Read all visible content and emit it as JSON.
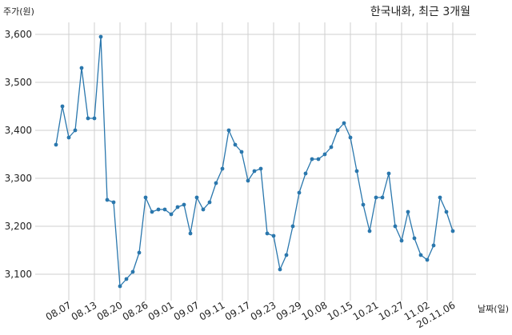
{
  "chart_data": {
    "type": "line",
    "title": "한국내화, 최근 3개월",
    "ylabel": "주가(원)",
    "xlabel": "날짜(일)",
    "ylim": [
      3045,
      3625
    ],
    "yticks": [
      3100,
      3200,
      3300,
      3400,
      3500,
      3600
    ],
    "ytick_labels": [
      "3,100",
      "3,200",
      "3,300",
      "3,400",
      "3,500",
      "3,600"
    ],
    "xtick_labels": [
      "08.07",
      "08.13",
      "08.20",
      "08.26",
      "09.01",
      "09.07",
      "09.11",
      "09.17",
      "09.23",
      "09.29",
      "10.08",
      "10.15",
      "10.21",
      "10.27",
      "11.02",
      "20.11.06"
    ],
    "xtick_index": [
      2,
      6,
      10,
      14,
      18,
      22,
      26,
      30,
      34,
      38,
      42,
      46,
      50,
      54,
      58,
      62
    ],
    "grid": true,
    "series_color": "#2a77ad",
    "series": [
      {
        "values": [
          3370,
          3450,
          3385,
          3400,
          3530,
          3425,
          3425,
          3595,
          3255,
          3250,
          3075,
          3090,
          3105,
          3145,
          3260,
          3230,
          3235,
          3235,
          3225,
          3240,
          3245,
          3185,
          3260,
          3235,
          3250,
          3290,
          3320,
          3400,
          3370,
          3355,
          3295,
          3315,
          3320,
          3185,
          3180,
          3110,
          3140,
          3200,
          3270,
          3310,
          3340,
          3340,
          3350,
          3365,
          3400,
          3415,
          3385,
          3315,
          3245,
          3190,
          3260,
          3260,
          3310,
          3200,
          3170,
          3230,
          3175,
          3140,
          3130,
          3160,
          3260,
          3230,
          3190
        ]
      }
    ]
  }
}
